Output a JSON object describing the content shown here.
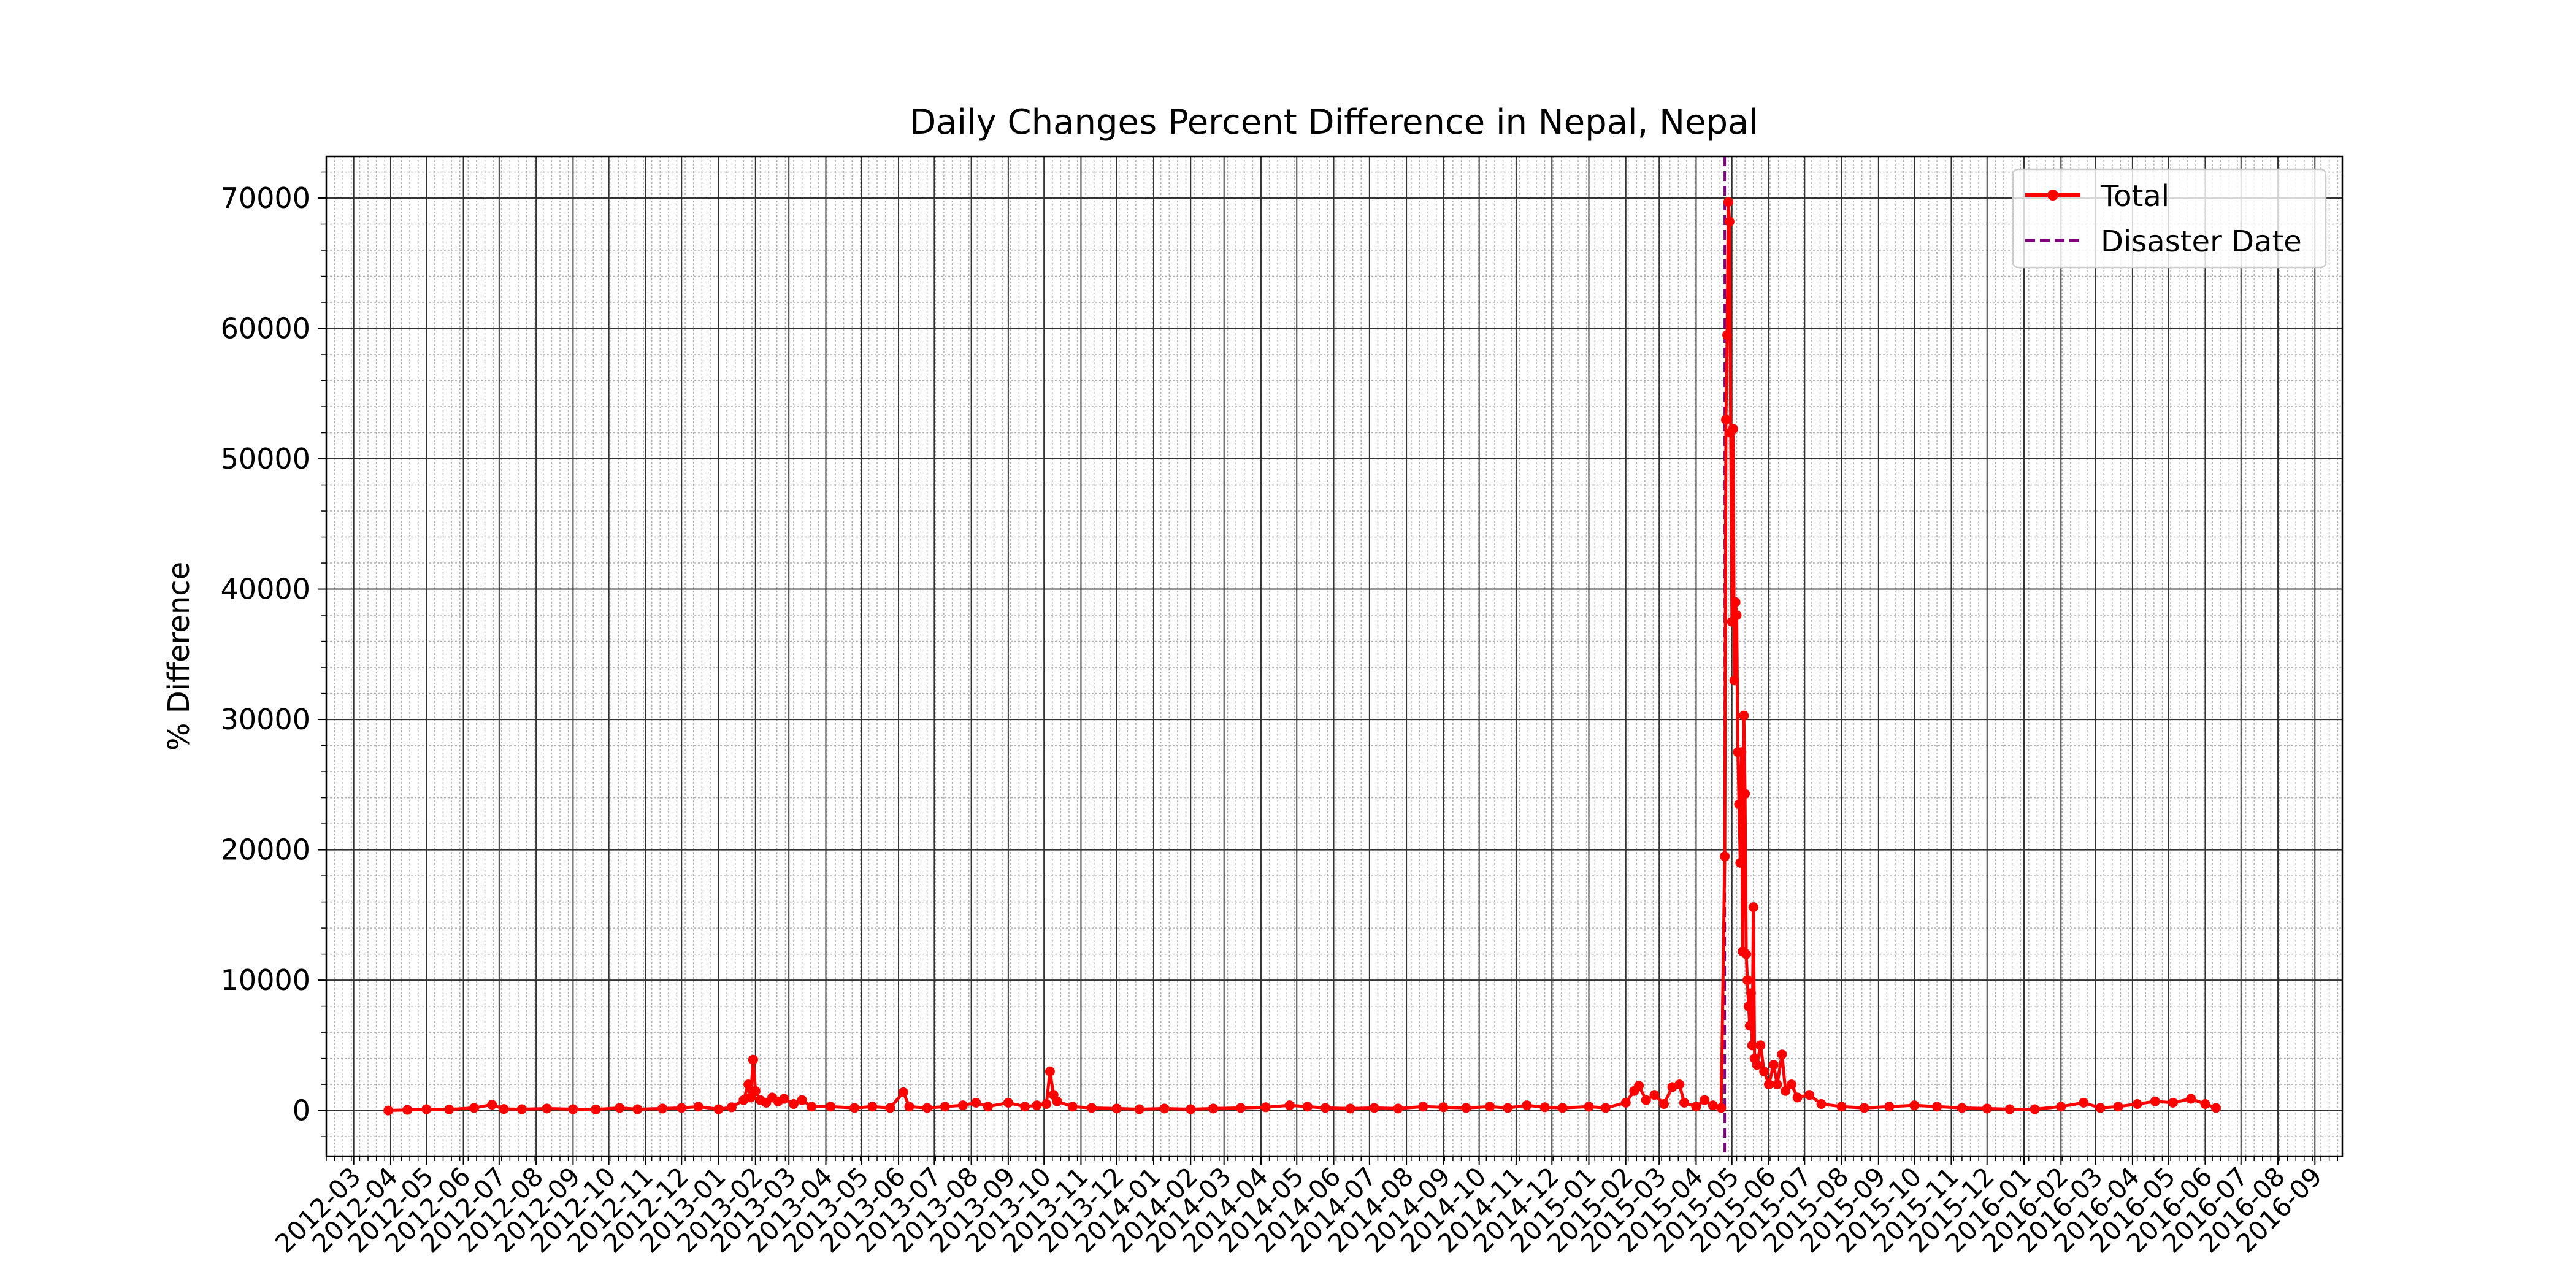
{
  "chart_data": {
    "type": "line",
    "title": "Daily Changes Percent Difference in Nepal, Nepal",
    "xlabel": "",
    "ylabel": "% Difference",
    "x_axis": {
      "kind": "date",
      "range": [
        "2012-02-07",
        "2016-09-24"
      ],
      "tick_labels": [
        "2012-03",
        "2012-04",
        "2012-05",
        "2012-06",
        "2012-07",
        "2012-08",
        "2012-09",
        "2012-10",
        "2012-11",
        "2012-12",
        "2013-01",
        "2013-02",
        "2013-03",
        "2013-04",
        "2013-05",
        "2013-06",
        "2013-07",
        "2013-08",
        "2013-09",
        "2013-10",
        "2013-11",
        "2013-12",
        "2014-01",
        "2014-02",
        "2014-03",
        "2014-04",
        "2014-05",
        "2014-06",
        "2014-07",
        "2014-08",
        "2014-09",
        "2014-10",
        "2014-11",
        "2014-12",
        "2015-01",
        "2015-02",
        "2015-03",
        "2015-04",
        "2015-05",
        "2015-06",
        "2015-07",
        "2015-08",
        "2015-09",
        "2015-10",
        "2015-11",
        "2015-12",
        "2016-01",
        "2016-02",
        "2016-03",
        "2016-04",
        "2016-05",
        "2016-06",
        "2016-07",
        "2016-08",
        "2016-09"
      ]
    },
    "y_axis": {
      "range": [
        -3500,
        73200
      ],
      "ticks": [
        0,
        10000,
        20000,
        30000,
        40000,
        50000,
        60000,
        70000
      ],
      "tick_labels": [
        "0",
        "10000",
        "20000",
        "30000",
        "40000",
        "50000",
        "60000",
        "70000"
      ]
    },
    "grid": true,
    "legend": {
      "position": "top-right",
      "entries": [
        "Total",
        "Disaster Date"
      ]
    },
    "series": [
      {
        "name": "Total",
        "color": "#ff0000",
        "marker": "circle",
        "points": [
          [
            "2012-03-30",
            0
          ],
          [
            "2012-04-15",
            50
          ],
          [
            "2012-05-01",
            100
          ],
          [
            "2012-05-20",
            80
          ],
          [
            "2012-06-10",
            200
          ],
          [
            "2012-06-25",
            450
          ],
          [
            "2012-07-05",
            120
          ],
          [
            "2012-07-20",
            100
          ],
          [
            "2012-08-10",
            150
          ],
          [
            "2012-09-01",
            100
          ],
          [
            "2012-09-20",
            80
          ],
          [
            "2012-10-10",
            200
          ],
          [
            "2012-10-25",
            100
          ],
          [
            "2012-11-15",
            150
          ],
          [
            "2012-12-01",
            200
          ],
          [
            "2012-12-15",
            300
          ],
          [
            "2013-01-01",
            100
          ],
          [
            "2013-01-12",
            250
          ],
          [
            "2013-01-22",
            800
          ],
          [
            "2013-01-26",
            2000
          ],
          [
            "2013-01-28",
            1000
          ],
          [
            "2013-01-30",
            3900
          ],
          [
            "2013-02-01",
            1500
          ],
          [
            "2013-02-05",
            800
          ],
          [
            "2013-02-10",
            600
          ],
          [
            "2013-02-15",
            1000
          ],
          [
            "2013-02-20",
            700
          ],
          [
            "2013-02-25",
            900
          ],
          [
            "2013-03-05",
            500
          ],
          [
            "2013-03-12",
            800
          ],
          [
            "2013-03-20",
            300
          ],
          [
            "2013-04-05",
            300
          ],
          [
            "2013-04-25",
            200
          ],
          [
            "2013-05-10",
            300
          ],
          [
            "2013-05-25",
            200
          ],
          [
            "2013-06-05",
            1400
          ],
          [
            "2013-06-10",
            300
          ],
          [
            "2013-06-25",
            200
          ],
          [
            "2013-07-10",
            300
          ],
          [
            "2013-07-25",
            400
          ],
          [
            "2013-08-05",
            600
          ],
          [
            "2013-08-15",
            300
          ],
          [
            "2013-09-01",
            600
          ],
          [
            "2013-09-15",
            300
          ],
          [
            "2013-09-25",
            400
          ],
          [
            "2013-10-03",
            500
          ],
          [
            "2013-10-06",
            3000
          ],
          [
            "2013-10-09",
            1200
          ],
          [
            "2013-10-12",
            700
          ],
          [
            "2013-10-25",
            300
          ],
          [
            "2013-11-10",
            200
          ],
          [
            "2013-12-01",
            150
          ],
          [
            "2013-12-20",
            100
          ],
          [
            "2014-01-10",
            150
          ],
          [
            "2014-02-01",
            100
          ],
          [
            "2014-02-20",
            150
          ],
          [
            "2014-03-15",
            200
          ],
          [
            "2014-04-05",
            250
          ],
          [
            "2014-04-25",
            400
          ],
          [
            "2014-05-10",
            300
          ],
          [
            "2014-05-25",
            200
          ],
          [
            "2014-06-15",
            150
          ],
          [
            "2014-07-05",
            200
          ],
          [
            "2014-07-25",
            150
          ],
          [
            "2014-08-15",
            300
          ],
          [
            "2014-09-01",
            250
          ],
          [
            "2014-09-20",
            200
          ],
          [
            "2014-10-10",
            300
          ],
          [
            "2014-10-25",
            200
          ],
          [
            "2014-11-10",
            400
          ],
          [
            "2014-11-25",
            250
          ],
          [
            "2014-12-10",
            200
          ],
          [
            "2015-01-01",
            300
          ],
          [
            "2015-01-15",
            200
          ],
          [
            "2015-02-01",
            600
          ],
          [
            "2015-02-08",
            1500
          ],
          [
            "2015-02-12",
            1900
          ],
          [
            "2015-02-18",
            800
          ],
          [
            "2015-02-25",
            1200
          ],
          [
            "2015-03-05",
            500
          ],
          [
            "2015-03-12",
            1800
          ],
          [
            "2015-03-18",
            2000
          ],
          [
            "2015-03-22",
            600
          ],
          [
            "2015-04-01",
            300
          ],
          [
            "2015-04-08",
            800
          ],
          [
            "2015-04-15",
            400
          ],
          [
            "2015-04-22",
            200
          ],
          [
            "2015-04-25",
            19500
          ],
          [
            "2015-04-26",
            53000
          ],
          [
            "2015-04-27",
            59500
          ],
          [
            "2015-04-28",
            69700
          ],
          [
            "2015-04-29",
            68200
          ],
          [
            "2015-04-30",
            52000
          ],
          [
            "2015-05-01",
            37500
          ],
          [
            "2015-05-02",
            52300
          ],
          [
            "2015-05-03",
            33000
          ],
          [
            "2015-05-04",
            39000
          ],
          [
            "2015-05-05",
            38000
          ],
          [
            "2015-05-06",
            27500
          ],
          [
            "2015-05-07",
            23500
          ],
          [
            "2015-05-08",
            19000
          ],
          [
            "2015-05-09",
            27500
          ],
          [
            "2015-05-10",
            12200
          ],
          [
            "2015-05-11",
            30300
          ],
          [
            "2015-05-12",
            24300
          ],
          [
            "2015-05-13",
            12000
          ],
          [
            "2015-05-14",
            10000
          ],
          [
            "2015-05-15",
            8000
          ],
          [
            "2015-05-16",
            6500
          ],
          [
            "2015-05-17",
            9000
          ],
          [
            "2015-05-18",
            5000
          ],
          [
            "2015-05-19",
            15600
          ],
          [
            "2015-05-20",
            4000
          ],
          [
            "2015-05-22",
            3500
          ],
          [
            "2015-05-25",
            5000
          ],
          [
            "2015-05-28",
            3000
          ],
          [
            "2015-06-01",
            2000
          ],
          [
            "2015-06-05",
            3500
          ],
          [
            "2015-06-08",
            2000
          ],
          [
            "2015-06-12",
            4300
          ],
          [
            "2015-06-15",
            1500
          ],
          [
            "2015-06-20",
            2000
          ],
          [
            "2015-06-25",
            1000
          ],
          [
            "2015-07-05",
            1200
          ],
          [
            "2015-07-15",
            500
          ],
          [
            "2015-08-01",
            300
          ],
          [
            "2015-08-20",
            200
          ],
          [
            "2015-09-10",
            300
          ],
          [
            "2015-10-01",
            400
          ],
          [
            "2015-10-20",
            300
          ],
          [
            "2015-11-10",
            200
          ],
          [
            "2015-12-01",
            150
          ],
          [
            "2015-12-20",
            100
          ],
          [
            "2016-01-10",
            100
          ],
          [
            "2016-02-01",
            300
          ],
          [
            "2016-02-20",
            600
          ],
          [
            "2016-03-05",
            200
          ],
          [
            "2016-03-20",
            300
          ],
          [
            "2016-04-05",
            500
          ],
          [
            "2016-04-20",
            700
          ],
          [
            "2016-05-05",
            600
          ],
          [
            "2016-05-20",
            900
          ],
          [
            "2016-06-01",
            500
          ],
          [
            "2016-06-10",
            200
          ]
        ]
      }
    ],
    "reference_lines": [
      {
        "name": "Disaster Date",
        "x": "2015-04-25",
        "color": "#800080",
        "style": "dashed"
      }
    ]
  }
}
